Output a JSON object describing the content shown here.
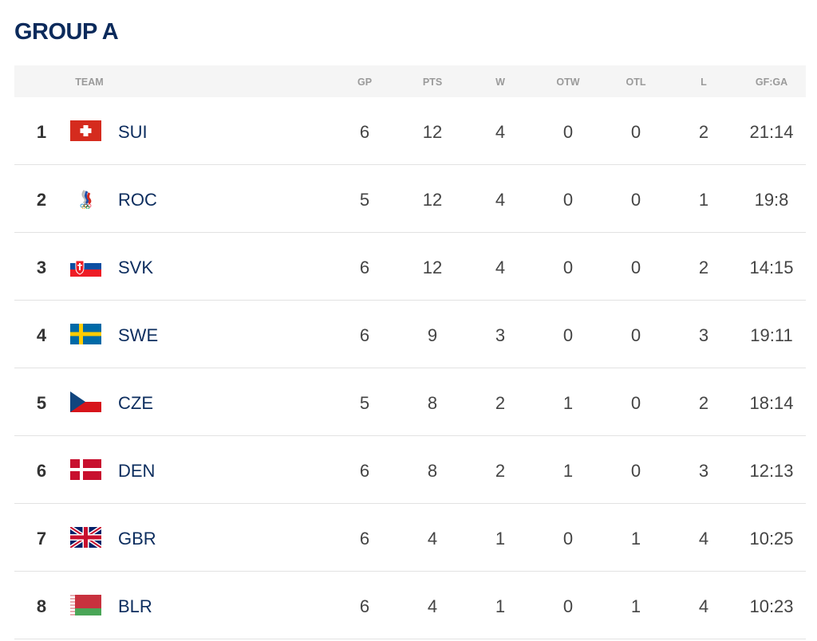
{
  "title": "GROUP A",
  "columns": {
    "team": "TEAM",
    "gp": "GP",
    "pts": "PTS",
    "w": "W",
    "otw": "OTW",
    "otl": "OTL",
    "l": "L",
    "gfga": "GF:GA"
  },
  "rows": [
    {
      "rank": "1",
      "flag": "switzerland-flag",
      "team": "SUI",
      "gp": "6",
      "pts": "12",
      "w": "4",
      "otw": "0",
      "otl": "0",
      "l": "2",
      "gfga": "21:14"
    },
    {
      "rank": "2",
      "flag": "roc-emblem",
      "team": "ROC",
      "gp": "5",
      "pts": "12",
      "w": "4",
      "otw": "0",
      "otl": "0",
      "l": "1",
      "gfga": "19:8"
    },
    {
      "rank": "3",
      "flag": "slovakia-flag",
      "team": "SVK",
      "gp": "6",
      "pts": "12",
      "w": "4",
      "otw": "0",
      "otl": "0",
      "l": "2",
      "gfga": "14:15"
    },
    {
      "rank": "4",
      "flag": "sweden-flag",
      "team": "SWE",
      "gp": "6",
      "pts": "9",
      "w": "3",
      "otw": "0",
      "otl": "0",
      "l": "3",
      "gfga": "19:11"
    },
    {
      "rank": "5",
      "flag": "czechia-flag",
      "team": "CZE",
      "gp": "5",
      "pts": "8",
      "w": "2",
      "otw": "1",
      "otl": "0",
      "l": "2",
      "gfga": "18:14"
    },
    {
      "rank": "6",
      "flag": "denmark-flag",
      "team": "DEN",
      "gp": "6",
      "pts": "8",
      "w": "2",
      "otw": "1",
      "otl": "0",
      "l": "3",
      "gfga": "12:13"
    },
    {
      "rank": "7",
      "flag": "great-britain-flag",
      "team": "GBR",
      "gp": "6",
      "pts": "4",
      "w": "1",
      "otw": "0",
      "otl": "1",
      "l": "4",
      "gfga": "10:25"
    },
    {
      "rank": "8",
      "flag": "belarus-flag",
      "team": "BLR",
      "gp": "6",
      "pts": "4",
      "w": "1",
      "otw": "0",
      "otl": "1",
      "l": "4",
      "gfga": "10:23"
    }
  ]
}
